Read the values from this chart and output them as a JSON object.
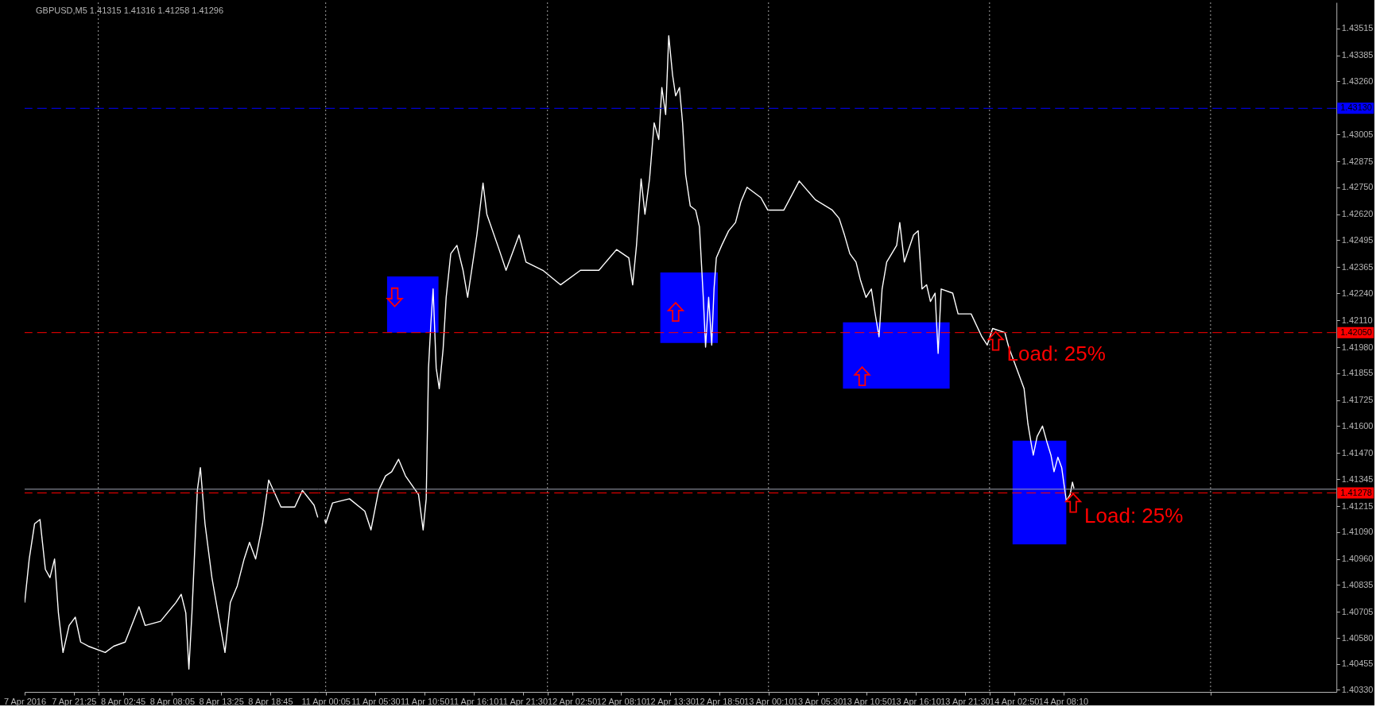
{
  "chart_data": [
    {
      "type": "line",
      "title": "GBPUSD,M5 1.41315 1.41316 1.41258 1.41296",
      "x": [
        "2016-04-07T16:05",
        "2016-04-07T16:35",
        "2016-04-07T17:10",
        "2016-04-07T17:45",
        "2016-04-07T18:20",
        "2016-04-07T18:50",
        "2016-04-07T19:20",
        "2016-04-07T19:45",
        "2016-04-07T20:15",
        "2016-04-07T20:55",
        "2016-04-07T21:35",
        "2016-04-07T22:10",
        "2016-04-07T23:00",
        "2016-04-08T00:50",
        "2016-04-08T01:45",
        "2016-04-08T03:00",
        "2016-04-08T04:30",
        "2016-04-08T05:10",
        "2016-04-08T06:50",
        "2016-04-08T08:30",
        "2016-04-08T09:05",
        "2016-04-08T09:35",
        "2016-04-08T09:55",
        "2016-04-08T10:15",
        "2016-04-08T10:50",
        "2016-04-08T11:10",
        "2016-04-08T11:40",
        "2016-04-08T12:25",
        "2016-04-08T13:05",
        "2016-04-08T13:50",
        "2016-04-08T14:25",
        "2016-04-08T15:10",
        "2016-04-08T15:55",
        "2016-04-08T16:30",
        "2016-04-08T17:10",
        "2016-04-08T17:55",
        "2016-04-08T18:35",
        "2016-04-08T19:55",
        "2016-04-08T21:25",
        "2016-04-08T22:15",
        "2016-04-08T23:30",
        "2016-04-08T23:55"
      ],
      "series": [
        {
          "color": "#ffffff",
          "values": [
            1.4075,
            1.4096,
            1.4113,
            1.4115,
            1.4091,
            1.4087,
            1.4096,
            1.407,
            1.4051,
            1.4064,
            1.4068,
            1.4056,
            1.4054,
            1.4051,
            1.4054,
            1.4056,
            1.4073,
            1.4064,
            1.4066,
            1.4075,
            1.4079,
            1.407,
            1.4043,
            1.407,
            1.4129,
            1.414,
            1.4113,
            1.4087,
            1.407,
            1.4051,
            1.4075,
            1.4083,
            1.4096,
            1.4104,
            1.4096,
            1.4113,
            1.4134,
            1.4121,
            1.4121,
            1.4129,
            1.4122,
            1.4116
          ]
        }
      ],
      "xlim": [
        "2016-04-07T16:05",
        "2016-04-09T00:00"
      ],
      "xticks": [
        {
          "value": "2016-04-07T16:05",
          "label": "7 Apr 2016"
        },
        {
          "value": "2016-04-07T21:25",
          "label": "7 Apr 21:25"
        },
        {
          "value": "2016-04-08T00:05",
          "label": null
        },
        {
          "value": "2016-04-08T02:45",
          "label": "8 Apr 02:45"
        },
        {
          "value": "2016-04-08T08:05",
          "label": "8 Apr 08:05"
        },
        {
          "value": "2016-04-08T13:25",
          "label": "8 Apr 13:25"
        },
        {
          "value": "2016-04-08T18:45",
          "label": "8 Apr 18:45"
        }
      ],
      "ylim": [
        1.4032,
        1.4364
      ],
      "tick_labels": "x",
      "ref_lines": [
        {
          "axis": "x",
          "value": "2016-04-08T00:05",
          "color": "#a0a0a0",
          "line_style": "dotted"
        },
        {
          "axis": "y",
          "value": 1.41296,
          "color": "#a0a4b4",
          "line_style": "solid"
        },
        {
          "axis": "y",
          "value": 1.4313,
          "color": "#0000ff",
          "line_style": "dashed"
        },
        {
          "axis": "y",
          "value": 1.4205,
          "color": "#ff0000",
          "line_style": "dashed"
        },
        {
          "axis": "y",
          "value": 1.41278,
          "color": "#ff0000",
          "line_style": "dashed"
        }
      ]
    },
    {
      "type": "line",
      "x": [
        "2016-04-11T00:00",
        "2016-04-11T00:05",
        "2016-04-11T00:50",
        "2016-04-11T02:40",
        "2016-04-11T04:20",
        "2016-04-11T05:00",
        "2016-04-11T05:50",
        "2016-04-11T06:35",
        "2016-04-11T07:15",
        "2016-04-11T08:00",
        "2016-04-11T08:45",
        "2016-04-11T10:10",
        "2016-04-11T10:40",
        "2016-04-11T11:00",
        "2016-04-11T11:15",
        "2016-04-11T11:30",
        "2016-04-11T11:45",
        "2016-04-11T12:05",
        "2016-04-11T12:25",
        "2016-04-11T12:50",
        "2016-04-11T13:10",
        "2016-04-11T13:40",
        "2016-04-11T14:20",
        "2016-04-11T15:00",
        "2016-04-11T15:30",
        "2016-04-11T16:30",
        "2016-04-11T17:10",
        "2016-04-11T17:35",
        "2016-04-11T18:55",
        "2016-04-11T19:40",
        "2016-04-11T21:05",
        "2016-04-11T21:50",
        "2016-04-11T23:40",
        "2016-04-12T01:35",
        "2016-04-12T03:45",
        "2016-04-12T05:45",
        "2016-04-12T07:40",
        "2016-04-12T09:00",
        "2016-04-12T09:25",
        "2016-04-12T09:50",
        "2016-04-12T10:20",
        "2016-04-12T10:45",
        "2016-04-12T11:15",
        "2016-04-12T11:45",
        "2016-04-12T12:15",
        "2016-04-12T12:35",
        "2016-04-12T13:00",
        "2016-04-12T13:20",
        "2016-04-12T13:45",
        "2016-04-12T14:05",
        "2016-04-12T14:30",
        "2016-04-12T14:50",
        "2016-04-12T15:10",
        "2016-04-12T15:40",
        "2016-04-12T16:15",
        "2016-04-12T16:40",
        "2016-04-12T17:05",
        "2016-04-12T17:20",
        "2016-04-12T17:40",
        "2016-04-12T18:00",
        "2016-04-12T18:15",
        "2016-04-12T18:30",
        "2016-04-12T19:05",
        "2016-04-12T19:50",
        "2016-04-12T20:35",
        "2016-04-12T21:10",
        "2016-04-12T21:50",
        "2016-04-12T23:20",
        "2016-04-13T00:05",
        "2016-04-13T01:50",
        "2016-04-13T03:30",
        "2016-04-13T05:15",
        "2016-04-13T07:05",
        "2016-04-13T07:50",
        "2016-04-13T08:25",
        "2016-04-13T09:00",
        "2016-04-13T09:40",
        "2016-04-13T10:10",
        "2016-04-13T10:45",
        "2016-04-13T11:20",
        "2016-04-13T11:45",
        "2016-04-13T12:10",
        "2016-04-13T12:30",
        "2016-04-13T13:00",
        "2016-04-13T14:05",
        "2016-04-13T14:25",
        "2016-04-13T14:55",
        "2016-04-13T15:55",
        "2016-04-13T16:25",
        "2016-04-13T16:50",
        "2016-04-13T17:20",
        "2016-04-13T17:45",
        "2016-04-13T18:15",
        "2016-04-13T18:35",
        "2016-04-13T18:55",
        "2016-04-13T20:10",
        "2016-04-13T20:45",
        "2016-04-13T22:10",
        "2016-04-13T23:20",
        "2016-04-13T23:55",
        "2016-04-14T00:30",
        "2016-04-14T01:50",
        "2016-04-14T02:15",
        "2016-04-14T02:50",
        "2016-04-14T03:25",
        "2016-04-14T03:55",
        "2016-04-14T04:20",
        "2016-04-14T04:45",
        "2016-04-14T04:55",
        "2016-04-14T05:20",
        "2016-04-14T05:55",
        "2016-04-14T06:25",
        "2016-04-14T06:50",
        "2016-04-14T07:10",
        "2016-04-14T07:35",
        "2016-04-14T08:00",
        "2016-04-14T08:15",
        "2016-04-14T08:30",
        "2016-04-14T08:55",
        "2016-04-14T09:10",
        "2016-04-14T09:20"
      ],
      "series": [
        {
          "color": "#0000ff",
          "x": [
            "2016-04-11T06:45",
            "2016-04-11T12:20"
          ],
          "values": [
            null,
            null
          ],
          "lower": [
            1.4205,
            1.4205
          ],
          "upper": [
            1.4232,
            1.4232
          ]
        },
        {
          "color": "#0000ff",
          "x": [
            "2016-04-12T12:25",
            "2016-04-12T18:40"
          ],
          "values": [
            null,
            null
          ],
          "lower": [
            1.42,
            1.42
          ],
          "upper": [
            1.4234,
            1.4234
          ]
        },
        {
          "color": "#0000ff",
          "x": [
            "2016-04-13T08:15",
            "2016-04-13T19:50"
          ],
          "values": [
            null,
            null
          ],
          "lower": [
            1.4178,
            1.4178
          ],
          "upper": [
            1.421,
            1.421
          ]
        },
        {
          "color": "#0000ff",
          "x": [
            "2016-04-14T02:40",
            "2016-04-14T08:30"
          ],
          "values": [
            null,
            null
          ],
          "lower": [
            1.4103,
            1.4103
          ],
          "upper": [
            1.4153,
            1.4153
          ]
        },
        {
          "color": "#ffffff",
          "values": [
            1.4115,
            1.4113,
            1.4123,
            1.4125,
            1.4119,
            1.411,
            1.4129,
            1.4136,
            1.4138,
            1.4144,
            1.4136,
            1.4127,
            1.411,
            1.4125,
            1.4188,
            1.4209,
            1.4226,
            1.4188,
            1.4178,
            1.4197,
            1.4222,
            1.4243,
            1.4247,
            1.4235,
            1.4222,
            1.4252,
            1.4277,
            1.4262,
            1.4245,
            1.4235,
            1.4252,
            1.4239,
            1.4235,
            1.4228,
            1.4235,
            1.4235,
            1.4245,
            1.4241,
            1.4228,
            1.4247,
            1.4279,
            1.4262,
            1.4279,
            1.4306,
            1.4298,
            1.4323,
            1.431,
            1.4348,
            1.4329,
            1.4319,
            1.4323,
            1.4306,
            1.4281,
            1.4266,
            1.4264,
            1.4256,
            1.4222,
            1.4198,
            1.4222,
            1.4199,
            1.4226,
            1.4241,
            1.4247,
            1.4254,
            1.4258,
            1.4268,
            1.4275,
            1.427,
            1.4264,
            1.4264,
            1.4278,
            1.4269,
            1.4264,
            1.426,
            1.4252,
            1.4243,
            1.4239,
            1.423,
            1.4222,
            1.4226,
            1.4214,
            1.4203,
            1.4226,
            1.4239,
            1.4247,
            1.4258,
            1.4239,
            1.4252,
            1.4254,
            1.4226,
            1.4228,
            1.422,
            1.4224,
            1.4195,
            1.4226,
            1.4224,
            1.4214,
            1.4214,
            1.4203,
            1.4199,
            1.4207,
            1.4205,
            1.4198,
            1.4191,
            1.4184,
            1.4178,
            1.4161,
            1.415,
            1.4146,
            1.4155,
            1.416,
            1.4152,
            1.4146,
            1.4138,
            1.4145,
            1.414,
            1.4132,
            1.4124,
            1.4127,
            1.4133,
            1.413
          ]
        },
        {
          "type": "scatter",
          "color": "#ff0000",
          "marker": "triangle",
          "x": [
            "2016-04-12T14:05",
            "2016-04-13T10:20",
            "2016-04-14T00:50",
            "2016-04-14T09:15"
          ],
          "values": [
            1.4215,
            1.4184,
            1.4201,
            1.4123
          ]
        },
        {
          "type": "scatter",
          "color": "#ff0000",
          "marker": "triangle-down",
          "x": [
            "2016-04-11T07:35"
          ],
          "values": [
            1.4222
          ]
        }
      ],
      "xlim": [
        "2016-04-10T23:20",
        "2016-04-15T13:50"
      ],
      "xticks": [
        {
          "value": "2016-04-11T00:05",
          "label": "11 Apr 00:05"
        },
        {
          "value": "2016-04-11T05:30",
          "label": "11 Apr 05:30"
        },
        {
          "value": "2016-04-11T10:50",
          "label": "11 Apr 10:50"
        },
        {
          "value": "2016-04-11T16:10",
          "label": "11 Apr 16:10"
        },
        {
          "value": "2016-04-11T21:30",
          "label": "11 Apr 21:30"
        },
        {
          "value": "2016-04-12T00:10",
          "label": null
        },
        {
          "value": "2016-04-12T02:50",
          "label": "12 Apr 02:50"
        },
        {
          "value": "2016-04-12T08:10",
          "label": "12 Apr 08:10"
        },
        {
          "value": "2016-04-12T13:30",
          "label": "12 Apr 13:30"
        },
        {
          "value": "2016-04-12T18:50",
          "label": "12 Apr 18:50"
        },
        {
          "value": "2016-04-13T00:10",
          "label": "13 Apr 00:10"
        },
        {
          "value": "2016-04-13T05:30",
          "label": "13 Apr 05:30"
        },
        {
          "value": "2016-04-13T10:50",
          "label": "13 Apr 10:50"
        },
        {
          "value": "2016-04-13T16:10",
          "label": "13 Apr 16:10"
        },
        {
          "value": "2016-04-13T21:30",
          "label": "13 Apr 21:30"
        },
        {
          "value": "2016-04-14T00:10",
          "label": null
        },
        {
          "value": "2016-04-14T02:50",
          "label": "14 Apr 02:50"
        },
        {
          "value": "2016-04-14T08:10",
          "label": "14 Apr 08:10"
        },
        {
          "value": "2016-04-15T00:10",
          "label": null
        }
      ],
      "ylim": [
        1.4032,
        1.4364
      ],
      "yticks": [
        1.43515,
        1.43385,
        {
          "value": 1.4326,
          "label": "1.43260"
        },
        1.43005,
        1.42875,
        {
          "value": 1.4275,
          "label": "1.42750"
        },
        {
          "value": 1.4262,
          "label": "1.42620"
        },
        1.42495,
        1.42365,
        {
          "value": 1.4224,
          "label": "1.42240"
        },
        {
          "value": 1.4211,
          "label": "1.42110"
        },
        {
          "value": 1.4198,
          "label": "1.41980"
        },
        1.41855,
        1.41725,
        {
          "value": 1.416,
          "label": "1.41600"
        },
        {
          "value": 1.4147,
          "label": "1.41470"
        },
        1.41345,
        1.41215,
        {
          "value": 1.4109,
          "label": "1.41090"
        },
        {
          "value": 1.4096,
          "label": "1.40960"
        },
        1.40835,
        1.40705,
        {
          "value": 1.4058,
          "label": "1.40580"
        },
        1.40455,
        {
          "value": 1.4033,
          "label": "1.40330"
        }
      ],
      "ref_lines": [
        {
          "axis": "x",
          "value": "2016-04-11T00:05",
          "color": "#a0a0a0",
          "line_style": "dotted"
        },
        {
          "axis": "x",
          "value": "2016-04-12T00:10",
          "color": "#a0a0a0",
          "line_style": "dotted"
        },
        {
          "axis": "x",
          "value": "2016-04-13T00:10",
          "color": "#a0a0a0",
          "line_style": "dotted"
        },
        {
          "axis": "x",
          "value": "2016-04-14T00:10",
          "color": "#a0a0a0",
          "line_style": "dotted"
        },
        {
          "axis": "x",
          "value": "2016-04-15T00:10",
          "color": "#a0a0a0",
          "line_style": "dotted"
        },
        {
          "axis": "y",
          "value": 1.41296,
          "color": "#a0a4b4",
          "line_style": "solid"
        },
        {
          "axis": "y",
          "value": 1.4313,
          "label": "1.43130",
          "color": "#0000ff",
          "line_style": "dashed"
        },
        {
          "axis": "y",
          "value": 1.4205,
          "label": "1.42050",
          "color": "#ff0000",
          "line_style": "dashed"
        },
        {
          "axis": "y",
          "value": 1.41278,
          "label": "1.41278",
          "color": "#ff0000",
          "line_style": "dashed"
        }
      ],
      "annotations": [
        {
          "text": "Load: 25%",
          "x": "2016-04-14T00:50",
          "y": 1.4201
        },
        {
          "text": "Load: 25%",
          "x": "2016-04-14T09:15",
          "y": 1.4123
        }
      ]
    }
  ]
}
